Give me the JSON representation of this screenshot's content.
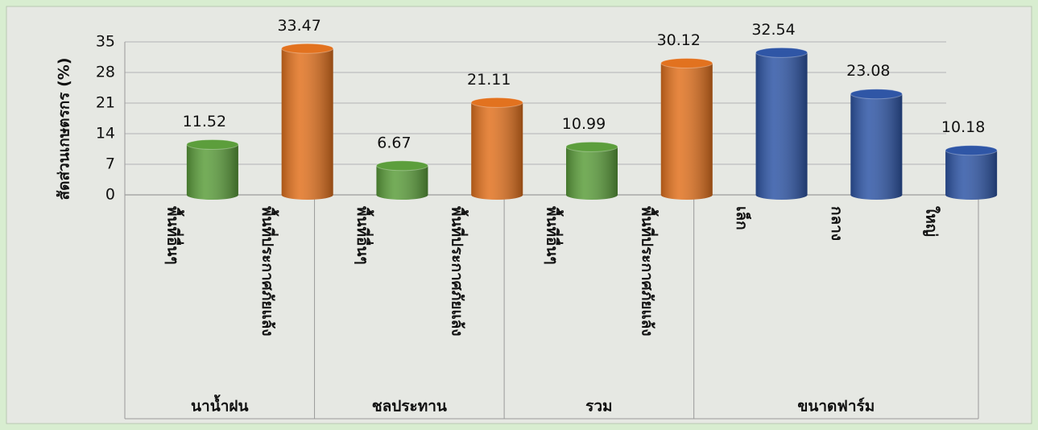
{
  "chart_data": {
    "type": "bar",
    "y_label": "สัดส่วนเกษตรกร (%)",
    "categories": [
      "พื้นที่อื่นๆ",
      "พื้นที่ประกาศภัยแล้ง",
      "พื้นที่อื่นๆ",
      "พื้นที่ประกาศภัยแล้ง",
      "พื้นที่อื่นๆ",
      "พื้นที่ประกาศภัยแล้ง",
      "เล็ก",
      "กลาง",
      "ใหญ่"
    ],
    "values": [
      11.52,
      33.47,
      6.67,
      21.11,
      10.99,
      30.12,
      32.54,
      23.08,
      10.18
    ],
    "colors": [
      "#5c9e3c",
      "#e2721f",
      "#5c9e3c",
      "#e2721f",
      "#5c9e3c",
      "#e2721f",
      "#2f56a6",
      "#2f56a6",
      "#2f56a6"
    ],
    "groups": [
      "นาน้ำฝน",
      "ชลประทาน",
      "รวม",
      "ขนาดฟาร์ม"
    ],
    "group_sizes": [
      2,
      2,
      2,
      3
    ],
    "ylim": [
      0,
      35
    ],
    "yticks": [
      0,
      7,
      14,
      21,
      28,
      35
    ],
    "grid": true
  }
}
